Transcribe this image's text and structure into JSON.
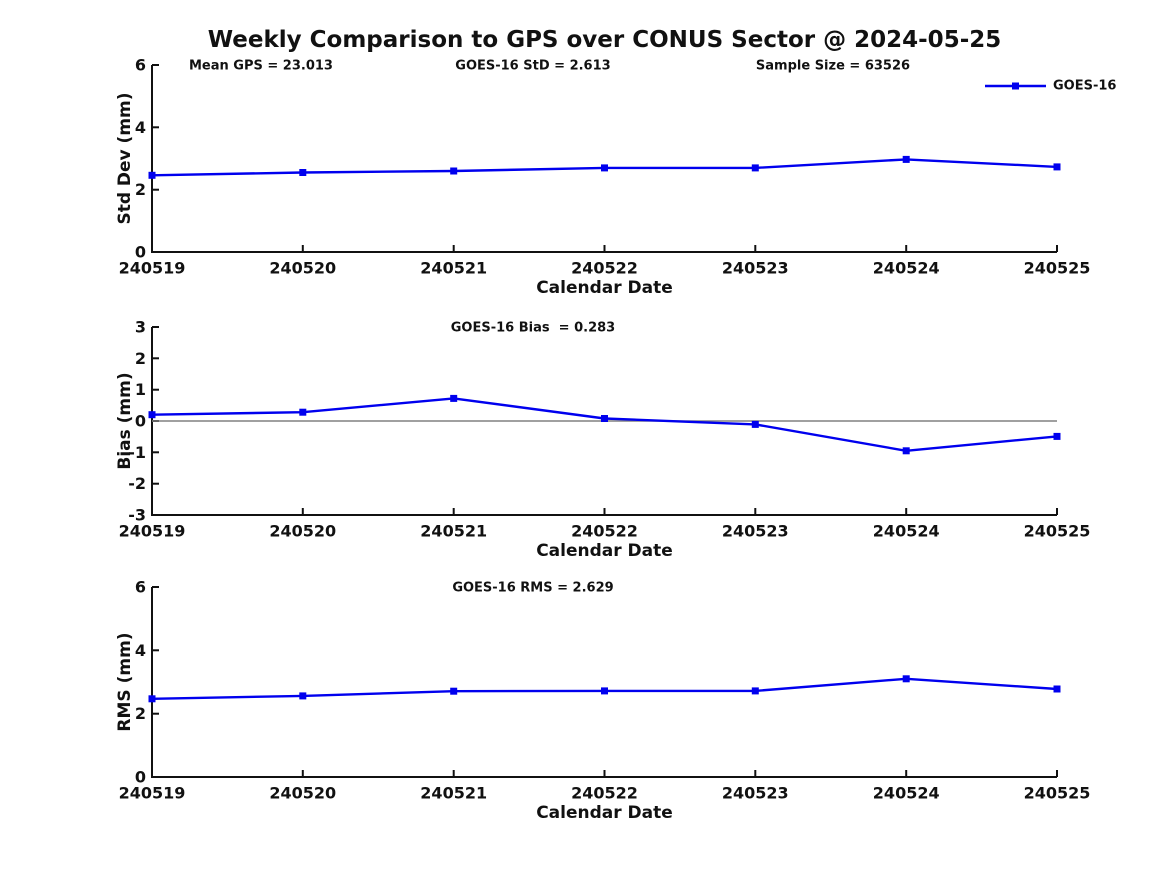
{
  "figure": {
    "title": "Weekly Comparison to GPS over CONUS Sector @ 2024-05-25",
    "legend": {
      "label": "GOES-16",
      "position": "upper right"
    },
    "colors": {
      "line": "#0000ee",
      "axis": "#111111",
      "text": "#111111",
      "zero_line": "#808080",
      "background": "#ffffff"
    }
  },
  "chart_data": [
    {
      "type": "line",
      "name": "std-dev",
      "annotations": [
        "Mean GPS = 23.013",
        "GOES-16 StD = 2.613",
        "Sample Size = 63526"
      ],
      "categories": [
        "240519",
        "240520",
        "240521",
        "240522",
        "240523",
        "240524",
        "240525"
      ],
      "series": [
        {
          "name": "GOES-16",
          "marker": "square",
          "values": [
            2.46,
            2.55,
            2.6,
            2.7,
            2.7,
            2.97,
            2.73
          ]
        }
      ],
      "xlabel": "Calendar Date",
      "ylabel": "Std Dev (mm)",
      "ylim": [
        0,
        6
      ],
      "yticks": [
        0,
        2,
        4,
        6
      ],
      "grid": false,
      "zero_line": false,
      "show_legend": true
    },
    {
      "type": "line",
      "name": "bias",
      "annotations": [
        "GOES-16 Bias  = 0.283"
      ],
      "categories": [
        "240519",
        "240520",
        "240521",
        "240522",
        "240523",
        "240524",
        "240525"
      ],
      "series": [
        {
          "name": "GOES-16",
          "marker": "square",
          "values": [
            0.2,
            0.28,
            0.72,
            0.08,
            -0.11,
            -0.95,
            -0.49
          ]
        }
      ],
      "xlabel": "Calendar Date",
      "ylabel": "Bias (mm)",
      "ylim": [
        -3,
        3
      ],
      "yticks": [
        3,
        2,
        1,
        0,
        -1,
        -2,
        -3
      ],
      "grid": false,
      "zero_line": true,
      "show_legend": false
    },
    {
      "type": "line",
      "name": "rms",
      "annotations": [
        "GOES-16 RMS = 2.629"
      ],
      "categories": [
        "240519",
        "240520",
        "240521",
        "240522",
        "240523",
        "240524",
        "240525"
      ],
      "series": [
        {
          "name": "GOES-16",
          "marker": "square",
          "values": [
            2.47,
            2.56,
            2.71,
            2.72,
            2.72,
            3.1,
            2.78
          ]
        }
      ],
      "xlabel": "Calendar Date",
      "ylabel": "RMS (mm)",
      "ylim": [
        0,
        6
      ],
      "yticks": [
        0,
        2,
        4,
        6
      ],
      "grid": false,
      "zero_line": false,
      "show_legend": false
    }
  ]
}
